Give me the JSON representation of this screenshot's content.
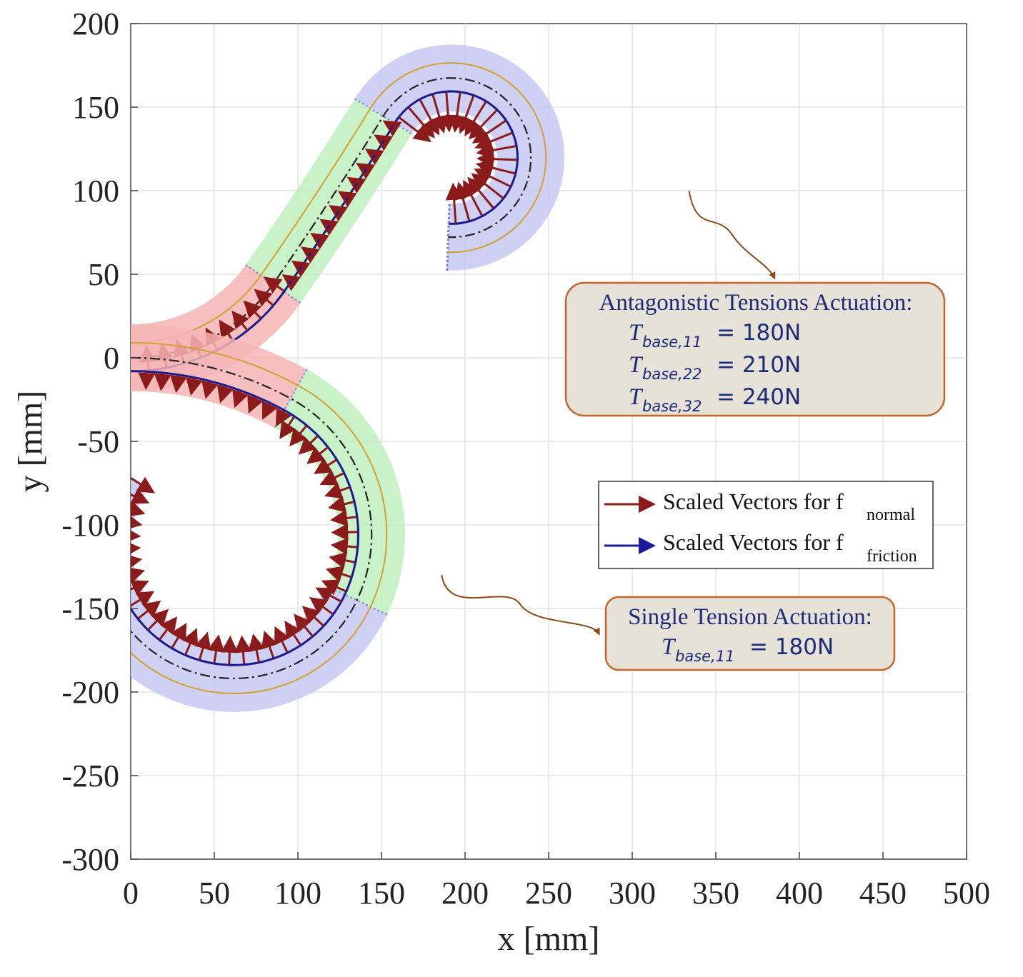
{
  "chart_data": {
    "type": "line",
    "xlabel": "x [mm]",
    "ylabel": "y [mm]",
    "xlim": [
      0,
      500
    ],
    "ylim": [
      -300,
      200
    ],
    "xticks": [
      "0",
      "50",
      "100",
      "150",
      "200",
      "250",
      "300",
      "350",
      "400",
      "450",
      "500"
    ],
    "yticks": [
      "200",
      "150",
      "100",
      "50",
      "0",
      "-50",
      "-100",
      "-150",
      "-200",
      "-250",
      "-300"
    ],
    "grid": true,
    "legend": {
      "placement": "right",
      "entries": [
        {
          "text": "Scaled Vectors for f",
          "sub": "normal",
          "color": "#8b1a1a"
        },
        {
          "text": "Scaled Vectors for f",
          "sub": "friction",
          "color": "#1a1a9a"
        }
      ]
    },
    "annotations": [
      {
        "title": "Antagonistic Tensions Actuation:",
        "lines": [
          {
            "sym": "T",
            "sub": "base,11",
            "value": "= 180N"
          },
          {
            "sym": "T",
            "sub": "base,22",
            "value": "= 210N"
          },
          {
            "sym": "T",
            "sub": "base,32",
            "value": "= 240N"
          }
        ]
      },
      {
        "title": "Single Tension Actuation:",
        "lines": [
          {
            "sym": "T",
            "sub": "base,11",
            "value": "= 180N"
          }
        ]
      }
    ],
    "colors": {
      "section1": "#f5b5b5",
      "section2": "#bff0bf",
      "section3": "#c6c8f2",
      "backbone": "#222222",
      "tendon_outer": "#d4a030",
      "tendon_inner": "#1a1a8a",
      "normal_vectors": "#8b1a1a",
      "friction_vectors": "#1a1a9a",
      "box_fill": "#e6e2d8",
      "box_border": "#c8642a",
      "callout": "#8a4a1a"
    },
    "robots": [
      {
        "name": "antagonistic",
        "start": [
          0,
          0
        ],
        "sections": [
          {
            "length": 100,
            "curvature": 0.0096,
            "color": "section1"
          },
          {
            "length": 120,
            "curvature": 0.0005,
            "color": "section2"
          },
          {
            "length": 200,
            "curvature": -0.021,
            "color": "section3"
          }
        ]
      },
      {
        "name": "single",
        "start": [
          0,
          0
        ],
        "sections": [
          {
            "length": 100,
            "curvature": -0.005,
            "color": "section1"
          },
          {
            "length": 140,
            "curvature": -0.0108,
            "color": "section2"
          },
          {
            "length": 265,
            "curvature": -0.0123,
            "color": "section3"
          }
        ]
      }
    ],
    "callouts": [
      {
        "from": [
          334,
          100
        ],
        "to": [
          385,
          48
        ]
      },
      {
        "from": [
          186,
          -130
        ],
        "to": [
          280,
          -165
        ]
      }
    ]
  }
}
